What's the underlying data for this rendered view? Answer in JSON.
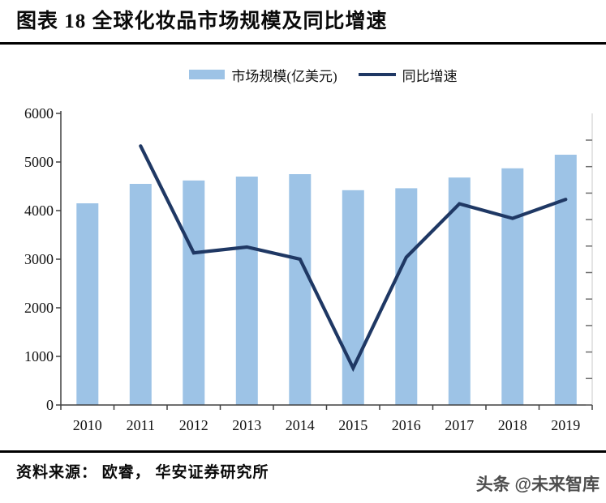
{
  "header": {
    "title": "图表 18 全球化妆品市场规模及同比增速"
  },
  "legend": {
    "items": [
      {
        "label": "市场规模(亿美元)",
        "marker": "bar-swatch",
        "color": "#9DC3E6"
      },
      {
        "label": "同比增速",
        "marker": "line-swatch",
        "color": "#1F3864"
      }
    ]
  },
  "chart_data": {
    "type": "bar",
    "combo": "bar + line",
    "title": "全球化妆品市场规模及同比增速",
    "categories": [
      "2010",
      "2011",
      "2012",
      "2013",
      "2014",
      "2015",
      "2016",
      "2017",
      "2018",
      "2019"
    ],
    "series": [
      {
        "name": "市场规模(亿美元)",
        "type": "bar",
        "yaxis": "left",
        "color": "#9DC3E6",
        "values": [
          4150,
          4550,
          4620,
          4700,
          4750,
          4420,
          4460,
          4680,
          4870,
          5150
        ]
      },
      {
        "name": "同比增速",
        "type": "line",
        "yaxis": "right-unlabeled",
        "color": "#1F3864",
        "values_on_left_axis_scale": [
          null,
          5330,
          3130,
          3250,
          3000,
          760,
          3040,
          4140,
          3840,
          4230
        ],
        "estimated_growth_pct": [
          null,
          9.5,
          1.6,
          2.0,
          1.1,
          -7.0,
          1.2,
          5.2,
          4.1,
          5.5
        ]
      }
    ],
    "left_axis": {
      "min": 0,
      "max": 6000,
      "step": 1000,
      "tick_labels": [
        "0",
        "1000",
        "2000",
        "3000",
        "4000",
        "5000",
        "6000"
      ]
    },
    "right_axis": {
      "labels_visible": false,
      "tick_count": 11
    },
    "grid": false,
    "legend_position": "top-center"
  },
  "footer": {
    "source": "资料来源： 欧睿， 华安证券研究所",
    "watermark": "头条 @未来智库"
  }
}
